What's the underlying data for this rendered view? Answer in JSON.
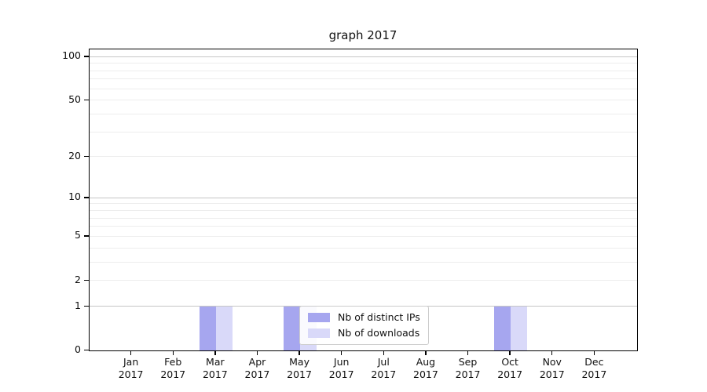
{
  "chart_data": {
    "type": "bar",
    "title": "graph 2017",
    "x_months": [
      "Jan",
      "Feb",
      "Mar",
      "Apr",
      "May",
      "Jun",
      "Jul",
      "Aug",
      "Sep",
      "Oct",
      "Nov",
      "Dec"
    ],
    "x_year": "2017",
    "series": [
      {
        "name": "Nb of distinct IPs",
        "color": "#a6a6ef",
        "values": [
          0,
          0,
          1,
          0,
          1,
          0,
          0,
          0,
          0,
          1,
          0,
          0
        ]
      },
      {
        "name": "Nb of downloads",
        "color": "#d9d9f9",
        "values": [
          0,
          0,
          1,
          0,
          1,
          0,
          0,
          0,
          0,
          1,
          0,
          0
        ]
      }
    ],
    "y_major_ticks": [
      0,
      1,
      2,
      5,
      10,
      20,
      50,
      100
    ],
    "y_minor_gridline_values": [
      3,
      4,
      6,
      7,
      8,
      9,
      30,
      40,
      60,
      70,
      80,
      90
    ],
    "y_power_gridline_values": [
      1,
      10,
      100
    ],
    "y_scale": "log10(1+v)",
    "ylim": [
      0,
      112
    ],
    "grid": "on",
    "legend_position": "inside-lower-left-of-center",
    "colors": {
      "grid_power": "#c6c6c6",
      "grid_minor": "#ededed",
      "axis": "#000000",
      "background": "#ffffff"
    }
  }
}
